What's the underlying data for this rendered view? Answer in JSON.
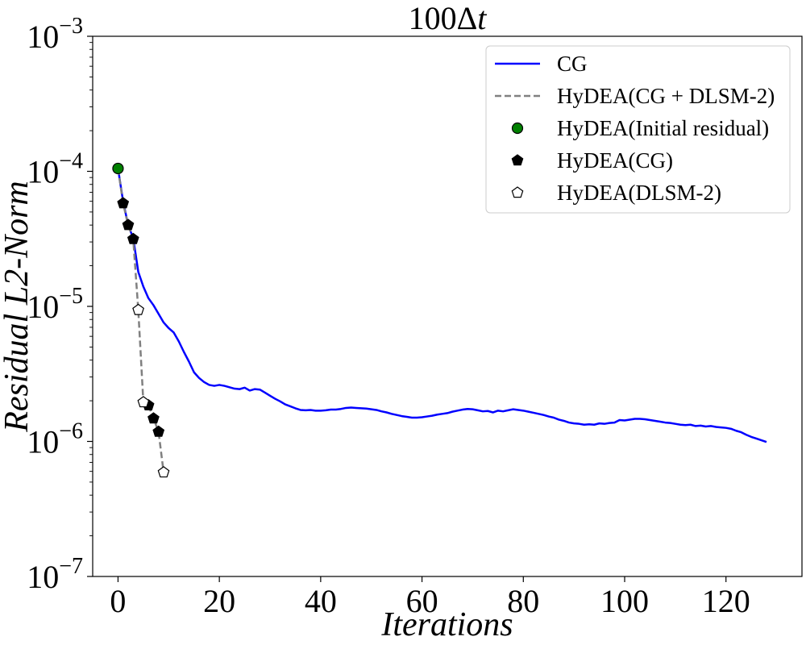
{
  "chart_data": {
    "type": "line",
    "title_prefix": "100Δ",
    "title_var": "t",
    "xlabel": "Iterations",
    "ylabel": "Residual L2-Norm",
    "yscale": "log",
    "xlim": [
      -5,
      135
    ],
    "ylim": [
      1e-07,
      0.001
    ],
    "xticks": [
      0,
      20,
      40,
      60,
      80,
      100,
      120
    ],
    "xtick_labels": [
      "0",
      "20",
      "40",
      "60",
      "80",
      "100",
      "120"
    ],
    "yticks": [
      {
        "value": 1e-07,
        "base": "10",
        "exp": "−7"
      },
      {
        "value": 1e-06,
        "base": "10",
        "exp": "−6"
      },
      {
        "value": 1e-05,
        "base": "10",
        "exp": "−5"
      },
      {
        "value": 0.0001,
        "base": "10",
        "exp": "−4"
      },
      {
        "value": 0.001,
        "base": "10",
        "exp": "−3"
      }
    ],
    "legend_position": "top-right",
    "series": [
      {
        "name": "CG",
        "kind": "line",
        "color": "#0000ff",
        "points": [
          [
            0,
            0.000105
          ],
          [
            1,
            6e-05
          ],
          [
            2,
            4e-05
          ],
          [
            3,
            3.2e-05
          ],
          [
            4,
            1.8e-05
          ],
          [
            5,
            1.4e-05
          ],
          [
            6,
            1.15e-05
          ],
          [
            7,
            1.02e-05
          ],
          [
            8,
            8.8e-06
          ],
          [
            9,
            7.6e-06
          ],
          [
            10,
            6.9e-06
          ],
          [
            11,
            6.4e-06
          ],
          [
            12,
            5.5e-06
          ],
          [
            13,
            4.6e-06
          ],
          [
            14,
            3.9e-06
          ],
          [
            15,
            3.25e-06
          ],
          [
            16,
            2.95e-06
          ],
          [
            17,
            2.75e-06
          ],
          [
            18,
            2.62e-06
          ],
          [
            19,
            2.58e-06
          ],
          [
            20,
            2.62e-06
          ],
          [
            21,
            2.58e-06
          ],
          [
            22,
            2.52e-06
          ],
          [
            23,
            2.46e-06
          ],
          [
            24,
            2.44e-06
          ],
          [
            25,
            2.5e-06
          ],
          [
            26,
            2.38e-06
          ],
          [
            27,
            2.44e-06
          ],
          [
            28,
            2.42e-06
          ],
          [
            29,
            2.3e-06
          ],
          [
            30,
            2.18e-06
          ],
          [
            31,
            2.07e-06
          ],
          [
            32,
            1.98e-06
          ],
          [
            33,
            1.88e-06
          ],
          [
            34,
            1.82e-06
          ],
          [
            35,
            1.76e-06
          ],
          [
            36,
            1.71e-06
          ],
          [
            37,
            1.7e-06
          ],
          [
            38,
            1.71e-06
          ],
          [
            39,
            1.69e-06
          ],
          [
            40,
            1.69e-06
          ],
          [
            41,
            1.7e-06
          ],
          [
            42,
            1.72e-06
          ],
          [
            43,
            1.72e-06
          ],
          [
            44,
            1.74e-06
          ],
          [
            45,
            1.77e-06
          ],
          [
            46,
            1.78e-06
          ],
          [
            47,
            1.77e-06
          ],
          [
            48,
            1.76e-06
          ],
          [
            49,
            1.75e-06
          ],
          [
            50,
            1.73e-06
          ],
          [
            51,
            1.71e-06
          ],
          [
            52,
            1.67e-06
          ],
          [
            53,
            1.64e-06
          ],
          [
            54,
            1.6e-06
          ],
          [
            55,
            1.57e-06
          ],
          [
            56,
            1.54e-06
          ],
          [
            57,
            1.52e-06
          ],
          [
            58,
            1.5e-06
          ],
          [
            59,
            1.5e-06
          ],
          [
            60,
            1.51e-06
          ],
          [
            61,
            1.53e-06
          ],
          [
            62,
            1.55e-06
          ],
          [
            63,
            1.58e-06
          ],
          [
            64,
            1.6e-06
          ],
          [
            65,
            1.62e-06
          ],
          [
            66,
            1.66e-06
          ],
          [
            67,
            1.69e-06
          ],
          [
            68,
            1.72e-06
          ],
          [
            69,
            1.74e-06
          ],
          [
            70,
            1.73e-06
          ],
          [
            71,
            1.7e-06
          ],
          [
            72,
            1.67e-06
          ],
          [
            73,
            1.68e-06
          ],
          [
            74,
            1.64e-06
          ],
          [
            75,
            1.69e-06
          ],
          [
            76,
            1.67e-06
          ],
          [
            77,
            1.7e-06
          ],
          [
            78,
            1.73e-06
          ],
          [
            79,
            1.71e-06
          ],
          [
            80,
            1.69e-06
          ],
          [
            81,
            1.66e-06
          ],
          [
            82,
            1.63e-06
          ],
          [
            83,
            1.6e-06
          ],
          [
            84,
            1.57e-06
          ],
          [
            85,
            1.53e-06
          ],
          [
            86,
            1.5e-06
          ],
          [
            87,
            1.45e-06
          ],
          [
            88,
            1.42e-06
          ],
          [
            89,
            1.38e-06
          ],
          [
            90,
            1.36e-06
          ],
          [
            91,
            1.35e-06
          ],
          [
            92,
            1.33e-06
          ],
          [
            93,
            1.34e-06
          ],
          [
            94,
            1.33e-06
          ],
          [
            95,
            1.36e-06
          ],
          [
            96,
            1.35e-06
          ],
          [
            97,
            1.37e-06
          ],
          [
            98,
            1.38e-06
          ],
          [
            99,
            1.44e-06
          ],
          [
            100,
            1.43e-06
          ],
          [
            101,
            1.45e-06
          ],
          [
            102,
            1.47e-06
          ],
          [
            103,
            1.47e-06
          ],
          [
            104,
            1.46e-06
          ],
          [
            105,
            1.44e-06
          ],
          [
            106,
            1.42e-06
          ],
          [
            107,
            1.4e-06
          ],
          [
            108,
            1.38e-06
          ],
          [
            109,
            1.37e-06
          ],
          [
            110,
            1.35e-06
          ],
          [
            111,
            1.33e-06
          ],
          [
            112,
            1.32e-06
          ],
          [
            113,
            1.33e-06
          ],
          [
            114,
            1.3e-06
          ],
          [
            115,
            1.31e-06
          ],
          [
            116,
            1.29e-06
          ],
          [
            117,
            1.3e-06
          ],
          [
            118,
            1.28e-06
          ],
          [
            119,
            1.27e-06
          ],
          [
            120,
            1.26e-06
          ],
          [
            121,
            1.24e-06
          ],
          [
            122,
            1.2e-06
          ],
          [
            123,
            1.17e-06
          ],
          [
            124,
            1.12e-06
          ],
          [
            125,
            1.08e-06
          ],
          [
            126,
            1.05e-06
          ],
          [
            127,
            1.02e-06
          ],
          [
            128,
            9.9e-07
          ]
        ]
      },
      {
        "name": "HyDEA(CG + DLSM-2)",
        "kind": "dashed",
        "color": "#808080",
        "points": [
          [
            0,
            0.000105
          ],
          [
            1,
            5.8e-05
          ],
          [
            2,
            4e-05
          ],
          [
            3,
            3.15e-05
          ],
          [
            4,
            9.4e-06
          ],
          [
            5,
            1.95e-06
          ],
          [
            6,
            1.85e-06
          ],
          [
            7,
            1.48e-06
          ],
          [
            8,
            1.18e-06
          ],
          [
            9,
            5.9e-07
          ]
        ]
      },
      {
        "name": "HyDEA(Initial residual)",
        "kind": "circle",
        "fill": "#008000",
        "points": [
          [
            0,
            0.000105
          ]
        ]
      },
      {
        "name": "HyDEA(CG)",
        "kind": "pentagon",
        "fill": "#000000",
        "points": [
          [
            1,
            5.8e-05
          ],
          [
            2,
            4e-05
          ],
          [
            3,
            3.15e-05
          ],
          [
            6,
            1.85e-06
          ],
          [
            7,
            1.48e-06
          ],
          [
            8,
            1.18e-06
          ]
        ]
      },
      {
        "name": "HyDEA(DLSM-2)",
        "kind": "pentagon",
        "fill": "#ffffff",
        "points": [
          [
            4,
            9.4e-06
          ],
          [
            5,
            1.95e-06
          ],
          [
            9,
            5.9e-07
          ]
        ]
      }
    ]
  }
}
